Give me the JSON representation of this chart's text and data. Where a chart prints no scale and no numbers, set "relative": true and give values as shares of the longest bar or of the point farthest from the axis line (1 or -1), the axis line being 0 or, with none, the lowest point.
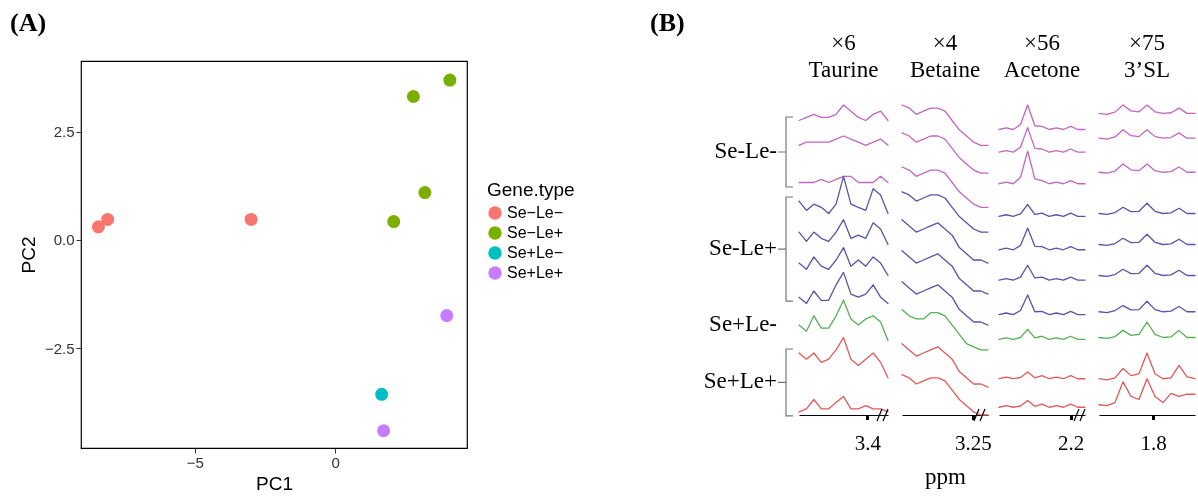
{
  "chart_data": [
    {
      "type": "scatter",
      "xlabel": "PC1",
      "ylabel": "PC2",
      "legend_title": "Gene.type",
      "legend": "right",
      "marker": "circle",
      "grid": false,
      "annotations": [
        "(A)"
      ],
      "xlim": [
        -9.05,
        4.7
      ],
      "ylim": [
        -4.81,
        4.13
      ],
      "xticks": [
        {
          "value": -5,
          "label": "−5"
        },
        0
      ],
      "yticks": [
        2.5,
        {
          "value": 0,
          "label": "0.0"
        },
        {
          "value": -2.5,
          "label": "−2.5"
        }
      ],
      "series": [
        {
          "name": "Se−Le−",
          "color": "#f8766d",
          "x": [
            -8.43,
            -8.1,
            -2.99
          ],
          "values": [
            0.3,
            0.47,
            0.47
          ]
        },
        {
          "name": "Se−Le+",
          "color": "#7cae00",
          "x": [
            2.79,
            4.09,
            3.2,
            2.09
          ],
          "values": [
            3.31,
            3.69,
            1.09,
            0.42
          ]
        },
        {
          "name": "Se+Le−",
          "color": "#00bfc4",
          "x": [
            1.66
          ],
          "values": [
            -3.57
          ]
        },
        {
          "name": "Se+Le+",
          "color": "#c77cff",
          "x": [
            3.98,
            1.73
          ],
          "values": [
            -1.75,
            -4.41
          ]
        }
      ]
    },
    {
      "type": "line",
      "relative": true,
      "title": "×6",
      "subtitle": "Taurine",
      "annotations": [
        "(B)",
        "Se-Le-",
        "Se-Le+",
        "Se+Le-",
        "Se+Le+",
        "3.4"
      ],
      "categories": [
        null,
        null,
        null,
        null,
        null,
        null,
        null,
        null,
        null,
        null,
        null,
        null,
        null
      ],
      "series": [
        {
          "color": "#c266c2",
          "values": [
            0.95,
            0.96,
            0.97,
            0.96,
            0.96,
            0.97,
            1.0,
            0.98,
            0.96,
            0.95,
            0.97,
            0.98,
            0.95
          ]
        },
        {
          "color": "#c266c2",
          "values": [
            0.87,
            0.88,
            0.88,
            0.88,
            0.88,
            0.89,
            0.9,
            0.89,
            0.88,
            0.87,
            0.88,
            0.89,
            0.87
          ]
        },
        {
          "color": "#c266c2",
          "values": [
            0.75,
            0.75,
            0.75,
            0.76,
            0.75,
            0.76,
            0.77,
            0.77,
            0.75,
            0.75,
            0.75,
            0.77,
            0.75
          ]
        },
        {
          "color": "#5555aa",
          "values": [
            0.69,
            0.66,
            0.68,
            0.67,
            0.65,
            0.68,
            0.77,
            0.68,
            0.67,
            0.66,
            0.73,
            0.71,
            0.65
          ]
        },
        {
          "color": "#5555aa",
          "values": [
            0.59,
            0.56,
            0.59,
            0.57,
            0.56,
            0.59,
            0.63,
            0.57,
            0.58,
            0.57,
            0.62,
            0.6,
            0.55
          ]
        },
        {
          "color": "#5555aa",
          "values": [
            0.49,
            0.47,
            0.51,
            0.48,
            0.47,
            0.5,
            0.54,
            0.48,
            0.5,
            0.48,
            0.51,
            0.49,
            0.45
          ]
        },
        {
          "color": "#5555aa",
          "values": [
            0.38,
            0.36,
            0.4,
            0.37,
            0.37,
            0.42,
            0.46,
            0.39,
            0.38,
            0.39,
            0.42,
            0.38,
            0.36
          ]
        },
        {
          "color": "#55b055",
          "values": [
            0.29,
            0.27,
            0.32,
            0.28,
            0.28,
            0.32,
            0.37,
            0.31,
            0.29,
            0.31,
            0.32,
            0.3,
            0.24
          ]
        },
        {
          "color": "#e05a5a",
          "values": [
            0.2,
            0.18,
            0.2,
            0.17,
            0.18,
            0.21,
            0.25,
            0.18,
            0.16,
            0.18,
            0.2,
            0.17,
            0.12
          ]
        },
        {
          "color": "#e05a5a",
          "values": [
            0.01,
            0.02,
            0.05,
            0.02,
            0.02,
            0.04,
            0.06,
            0.02,
            0.02,
            0.03,
            0.02,
            0.02,
            0.01
          ]
        }
      ]
    },
    {
      "type": "line",
      "relative": true,
      "title": "×4",
      "subtitle": "Betaine",
      "xlabel": "ppm",
      "annotations": [
        "3.25"
      ],
      "categories": [
        null,
        null,
        null,
        null,
        null,
        null,
        null,
        null,
        null,
        null,
        null,
        null,
        null
      ],
      "series": [
        {
          "color": "#c266c2",
          "values": [
            1.0,
            0.99,
            0.97,
            0.98,
            0.99,
            0.99,
            0.98,
            0.95,
            0.92,
            0.9,
            0.88,
            0.87,
            0.87
          ]
        },
        {
          "color": "#c266c2",
          "values": [
            0.91,
            0.9,
            0.88,
            0.89,
            0.9,
            0.9,
            0.89,
            0.86,
            0.83,
            0.81,
            0.79,
            0.78,
            0.78
          ]
        },
        {
          "color": "#c266c2",
          "values": [
            0.8,
            0.79,
            0.77,
            0.78,
            0.79,
            0.79,
            0.78,
            0.75,
            0.72,
            0.7,
            0.68,
            0.67,
            0.67
          ]
        },
        {
          "color": "#5555aa",
          "values": [
            0.72,
            0.71,
            0.69,
            0.7,
            0.71,
            0.71,
            0.7,
            0.67,
            0.64,
            0.62,
            0.6,
            0.59,
            0.59
          ]
        },
        {
          "color": "#5555aa",
          "values": [
            0.63,
            0.61,
            0.59,
            0.6,
            0.61,
            0.62,
            0.6,
            0.58,
            0.54,
            0.52,
            0.5,
            0.5,
            0.49
          ]
        },
        {
          "color": "#5555aa",
          "values": [
            0.53,
            0.51,
            0.49,
            0.5,
            0.51,
            0.52,
            0.5,
            0.48,
            0.44,
            0.42,
            0.4,
            0.4,
            0.39
          ]
        },
        {
          "color": "#5555aa",
          "values": [
            0.43,
            0.41,
            0.39,
            0.4,
            0.41,
            0.42,
            0.4,
            0.38,
            0.34,
            0.32,
            0.3,
            0.3,
            0.29
          ]
        },
        {
          "color": "#55b055",
          "values": [
            0.34,
            0.32,
            0.31,
            0.31,
            0.33,
            0.33,
            0.32,
            0.29,
            0.26,
            0.23,
            0.22,
            0.21,
            0.21
          ]
        },
        {
          "color": "#e05a5a",
          "values": [
            0.23,
            0.21,
            0.19,
            0.2,
            0.21,
            0.22,
            0.2,
            0.18,
            0.14,
            0.12,
            0.1,
            0.1,
            0.09
          ]
        },
        {
          "color": "#e05a5a",
          "values": [
            0.13,
            0.12,
            0.1,
            0.11,
            0.12,
            0.12,
            0.11,
            0.08,
            0.05,
            0.03,
            0.01,
            0.0,
            0.0
          ]
        }
      ]
    },
    {
      "type": "line",
      "relative": true,
      "title": "×56",
      "subtitle": "Acetone",
      "annotations": [
        "2.2"
      ],
      "categories": [
        null,
        null,
        null,
        null,
        null,
        null,
        null,
        null,
        null,
        null,
        null,
        null,
        null
      ],
      "series": [
        {
          "color": "#c266c2",
          "values": [
            0.921,
            0.926,
            0.921,
            0.937,
            1.0,
            0.933,
            0.931,
            0.921,
            0.926,
            0.921,
            0.931,
            0.921,
            0.921
          ]
        },
        {
          "color": "#c266c2",
          "values": [
            0.848,
            0.853,
            0.848,
            0.864,
            0.927,
            0.86,
            0.858,
            0.848,
            0.853,
            0.848,
            0.858,
            0.848,
            0.848
          ]
        },
        {
          "color": "#c266c2",
          "values": [
            0.746,
            0.751,
            0.746,
            0.767,
            0.851,
            0.762,
            0.756,
            0.746,
            0.751,
            0.746,
            0.756,
            0.746,
            0.746
          ]
        },
        {
          "color": "#5555aa",
          "values": [
            0.641,
            0.646,
            0.641,
            0.649,
            0.679,
            0.647,
            0.651,
            0.641,
            0.646,
            0.641,
            0.651,
            0.641,
            0.641
          ]
        },
        {
          "color": "#5555aa",
          "values": [
            0.533,
            0.538,
            0.533,
            0.547,
            0.603,
            0.544,
            0.543,
            0.533,
            0.538,
            0.533,
            0.543,
            0.533,
            0.533
          ]
        },
        {
          "color": "#5555aa",
          "values": [
            0.435,
            0.44,
            0.435,
            0.445,
            0.483,
            0.442,
            0.445,
            0.435,
            0.44,
            0.435,
            0.445,
            0.435,
            0.435
          ]
        },
        {
          "color": "#5555aa",
          "values": [
            0.324,
            0.329,
            0.324,
            0.337,
            0.387,
            0.333,
            0.334,
            0.324,
            0.329,
            0.324,
            0.334,
            0.324,
            0.324
          ]
        },
        {
          "color": "#55b055",
          "values": [
            0.244,
            0.249,
            0.244,
            0.25,
            0.276,
            0.249,
            0.254,
            0.244,
            0.249,
            0.244,
            0.254,
            0.244,
            0.244
          ]
        },
        {
          "color": "#e05a5a",
          "values": [
            0.117,
            0.122,
            0.117,
            0.121,
            0.139,
            0.12,
            0.127,
            0.117,
            0.122,
            0.117,
            0.127,
            0.117,
            0.117
          ]
        },
        {
          "color": "#e05a5a",
          "values": [
            0.025,
            0.03,
            0.025,
            0.029,
            0.047,
            0.028,
            0.035,
            0.025,
            0.03,
            0.025,
            0.035,
            0.025,
            0.025
          ]
        }
      ]
    },
    {
      "type": "line",
      "relative": true,
      "title": "×75",
      "subtitle": "3’SL",
      "annotations": [
        "1.8"
      ],
      "categories": [
        null,
        null,
        null,
        null,
        null,
        null,
        null,
        null,
        null,
        null,
        null,
        null,
        null
      ],
      "series": [
        {
          "color": "#c266c2",
          "values": [
            0.973,
            0.97,
            0.977,
            1.0,
            0.981,
            0.978,
            1.0,
            0.978,
            0.973,
            0.975,
            0.99,
            0.973,
            0.973
          ]
        },
        {
          "color": "#c266c2",
          "values": [
            0.893,
            0.89,
            0.897,
            0.92,
            0.901,
            0.898,
            0.92,
            0.898,
            0.893,
            0.895,
            0.91,
            0.893,
            0.893
          ]
        },
        {
          "color": "#c266c2",
          "values": [
            0.783,
            0.78,
            0.787,
            0.81,
            0.791,
            0.788,
            0.81,
            0.788,
            0.783,
            0.785,
            0.8,
            0.783,
            0.783
          ]
        },
        {
          "color": "#5555aa",
          "values": [
            0.65,
            0.647,
            0.653,
            0.67,
            0.656,
            0.657,
            0.683,
            0.657,
            0.65,
            0.652,
            0.667,
            0.65,
            0.65
          ]
        },
        {
          "color": "#5555aa",
          "values": [
            0.55,
            0.547,
            0.553,
            0.57,
            0.556,
            0.557,
            0.583,
            0.557,
            0.55,
            0.552,
            0.567,
            0.55,
            0.55
          ]
        },
        {
          "color": "#5555aa",
          "values": [
            0.45,
            0.447,
            0.453,
            0.47,
            0.456,
            0.457,
            0.483,
            0.457,
            0.45,
            0.452,
            0.467,
            0.45,
            0.45
          ]
        },
        {
          "color": "#5555aa",
          "values": [
            0.333,
            0.33,
            0.337,
            0.353,
            0.339,
            0.34,
            0.367,
            0.34,
            0.333,
            0.335,
            0.35,
            0.333,
            0.333
          ]
        },
        {
          "color": "#55b055",
          "values": [
            0.25,
            0.247,
            0.253,
            0.273,
            0.257,
            0.26,
            0.3,
            0.26,
            0.25,
            0.252,
            0.273,
            0.25,
            0.25
          ]
        },
        {
          "color": "#e05a5a",
          "values": [
            0.117,
            0.113,
            0.12,
            0.15,
            0.127,
            0.133,
            0.2,
            0.133,
            0.117,
            0.12,
            0.16,
            0.123,
            0.117
          ]
        },
        {
          "color": "#e05a5a",
          "values": [
            0.033,
            0.03,
            0.04,
            0.107,
            0.06,
            0.05,
            0.117,
            0.06,
            0.04,
            0.07,
            0.06,
            0.067,
            0.067
          ]
        }
      ]
    }
  ]
}
